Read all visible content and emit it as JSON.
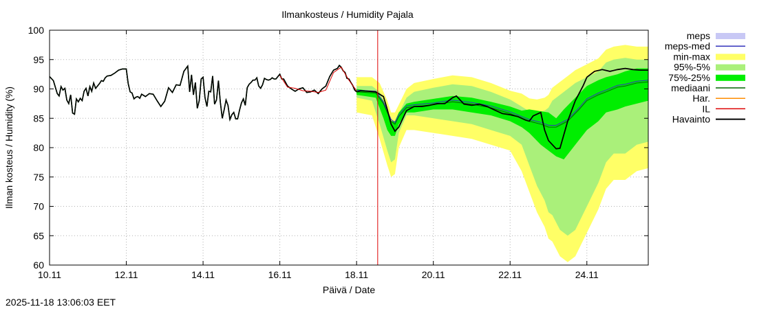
{
  "chart_data": {
    "type": "line",
    "title": "Ilmankosteus / Humidity  Pajala",
    "xlabel": "Päivä / Date",
    "ylabel": "Ilman kosteus / Humidity (%)",
    "timestamp": "2025-11-18 13:06:03 EET",
    "xlim": [
      10,
      25.6
    ],
    "ylim": [
      60,
      100
    ],
    "grid": true,
    "legend_position": "outside-right",
    "forecast_start": 18.55,
    "xticks": [
      {
        "value": 10,
        "label": "10.11"
      },
      {
        "value": 12,
        "label": "12.11"
      },
      {
        "value": 14,
        "label": "14.11"
      },
      {
        "value": 16,
        "label": "16.11"
      },
      {
        "value": 18,
        "label": "18.11"
      },
      {
        "value": 20,
        "label": "20.11"
      },
      {
        "value": 22,
        "label": "22.11"
      },
      {
        "value": 24,
        "label": "24.11"
      }
    ],
    "yticks": [
      60,
      65,
      70,
      75,
      80,
      85,
      90,
      95,
      100
    ],
    "legend": [
      {
        "key": "meps",
        "label": "meps",
        "color": "#c8c8f5",
        "style": "box"
      },
      {
        "key": "meps_med",
        "label": "meps-med",
        "color": "#3333bb",
        "style": "line"
      },
      {
        "key": "minmax",
        "label": "min-max",
        "color": "#ffff66",
        "style": "box"
      },
      {
        "key": "p95_5",
        "label": "95%-5%",
        "color": "#aaf07a",
        "style": "box"
      },
      {
        "key": "p75_25",
        "label": "75%-25%",
        "color": "#00ee00",
        "style": "box"
      },
      {
        "key": "median",
        "label": "mediaani",
        "color": "#006400",
        "style": "line"
      },
      {
        "key": "har",
        "label": "Har.",
        "color": "#ff8c00",
        "style": "line"
      },
      {
        "key": "il",
        "label": "IL",
        "color": "#dd0000",
        "style": "line"
      },
      {
        "key": "obs",
        "label": "Havainto",
        "color": "#000000",
        "style": "line"
      }
    ],
    "series": {
      "havainto_hist": {
        "name": "Havainto",
        "x": [
          10.0,
          10.1,
          10.2,
          10.25,
          10.3,
          10.35,
          10.4,
          10.45,
          10.5,
          10.55,
          10.6,
          10.65,
          10.7,
          10.75,
          10.8,
          10.85,
          10.9,
          10.95,
          11.0,
          11.05,
          11.1,
          11.15,
          11.2,
          11.25,
          11.3,
          11.35,
          11.4,
          11.45,
          11.5,
          11.6,
          11.7,
          11.8,
          11.9,
          12.0,
          12.05,
          12.1,
          12.15,
          12.2,
          12.25,
          12.3,
          12.35,
          12.4,
          12.5,
          12.6,
          12.7,
          12.8,
          12.9,
          13.0,
          13.1,
          13.2,
          13.3,
          13.4,
          13.5,
          13.6,
          13.65,
          13.7,
          13.75,
          13.8,
          13.85,
          13.9,
          13.95,
          14.0,
          14.05,
          14.1,
          14.15,
          14.2,
          14.25,
          14.3,
          14.35,
          14.4,
          14.45,
          14.5,
          14.55,
          14.6,
          14.65,
          14.7,
          14.75,
          14.8,
          14.85,
          14.9,
          14.95,
          15.0,
          15.05,
          15.1,
          15.15,
          15.2,
          15.25,
          15.3,
          15.35,
          15.4,
          15.45,
          15.5,
          15.55,
          15.6,
          15.65,
          15.7,
          15.75,
          15.8,
          15.85,
          15.9,
          15.95,
          16.0,
          16.05,
          16.1,
          16.15,
          16.2,
          16.3,
          16.4,
          16.5,
          16.6,
          16.7,
          16.8,
          16.9,
          17.0,
          17.1,
          17.2,
          17.3,
          17.4,
          17.5,
          17.55,
          17.6,
          17.65,
          17.7,
          17.75,
          17.8,
          17.85,
          17.9,
          17.95,
          18.0
        ],
        "values": [
          92.1,
          91.4,
          89.2,
          88.8,
          90.4,
          89.8,
          90.1,
          88.1,
          87.5,
          89.0,
          85.9,
          85.7,
          88.3,
          87.8,
          88.4,
          88.0,
          89.6,
          90.1,
          88.8,
          90.4,
          89.6,
          91.0,
          90.1,
          90.5,
          90.9,
          91.4,
          91.3,
          91.9,
          92.2,
          92.3,
          92.7,
          93.2,
          93.4,
          93.4,
          90.9,
          89.5,
          89.3,
          88.3,
          88.6,
          88.7,
          88.4,
          89.1,
          88.7,
          89.2,
          89.1,
          88.0,
          87.0,
          87.9,
          90.2,
          89.4,
          90.7,
          90.6,
          93.0,
          93.9,
          89.5,
          92.4,
          89.0,
          91.1,
          86.7,
          88.0,
          91.7,
          92.0,
          88.5,
          87.0,
          89.6,
          89.5,
          92.2,
          87.4,
          88.1,
          91.4,
          87.7,
          85.0,
          86.5,
          88.1,
          87.2,
          84.8,
          85.6,
          86.0,
          84.9,
          84.9,
          86.4,
          87.6,
          88.3,
          87.2,
          90.2,
          90.8,
          91.1,
          91.5,
          91.5,
          91.9,
          90.5,
          90.1,
          90.7,
          91.8,
          91.6,
          91.5,
          91.6,
          91.9,
          91.7,
          91.7,
          92.1,
          92.5,
          91.7,
          91.7,
          91.1,
          90.5,
          90.0,
          89.6,
          90.0,
          90.2,
          89.4,
          89.5,
          89.8,
          89.2,
          90.0,
          90.5,
          92.1,
          93.2,
          93.5,
          94.0,
          93.7,
          93.1,
          92.8,
          91.8,
          91.7,
          91.1,
          90.6,
          89.8,
          89.5
        ]
      },
      "il_hist": {
        "name": "IL",
        "x": [
          16.0,
          16.2,
          16.4,
          16.6,
          16.8,
          17.0,
          17.2,
          17.4,
          17.6,
          17.8,
          18.0
        ],
        "values": [
          92.3,
          90.3,
          90.1,
          89.7,
          89.6,
          89.4,
          89.8,
          92.8,
          93.7,
          91.5,
          89.7
        ]
      },
      "p95_5": {
        "x": [
          18.0,
          18.4,
          18.6,
          18.8,
          18.9,
          19.0,
          19.1,
          19.3,
          19.5,
          20.0,
          20.5,
          21.0,
          21.5,
          22.0,
          22.3,
          22.5,
          22.7,
          22.9,
          23.0,
          23.1,
          23.3,
          23.5,
          23.7,
          24.0,
          24.3,
          24.5,
          24.7,
          25.0,
          25.3,
          25.6
        ],
        "upper": [
          90.5,
          90.5,
          89.5,
          86.5,
          84.5,
          84.5,
          85.8,
          88.5,
          89.5,
          90.2,
          90.8,
          90.5,
          89.5,
          88.2,
          87.0,
          86.2,
          86.0,
          86.3,
          86.8,
          88.0,
          89.0,
          90.0,
          91.0,
          92.0,
          93.0,
          94.5,
          95.0,
          95.3,
          95.0,
          95.0
        ],
        "lower": [
          88.5,
          88.0,
          84.0,
          79.5,
          77.5,
          78.0,
          82.5,
          85.5,
          85.5,
          85.0,
          84.5,
          84.0,
          83.0,
          82.0,
          80.5,
          77.0,
          73.5,
          71.0,
          69.0,
          68.5,
          66.0,
          65.0,
          66.0,
          70.0,
          74.0,
          77.5,
          79.0,
          79.0,
          80.5,
          81.0
        ]
      },
      "p75_25": {
        "x": [
          18.0,
          18.5,
          18.7,
          18.8,
          18.9,
          19.0,
          19.1,
          19.3,
          19.5,
          20.0,
          20.5,
          21.0,
          21.5,
          22.0,
          22.3,
          22.5,
          22.8,
          23.0,
          23.2,
          23.4,
          23.7,
          24.0,
          24.3,
          24.5,
          24.8,
          25.0,
          25.3,
          25.6
        ],
        "upper": [
          90.0,
          89.5,
          88.0,
          86.0,
          84.5,
          84.5,
          86.0,
          87.5,
          87.8,
          88.3,
          88.8,
          88.5,
          87.8,
          87.0,
          86.3,
          86.5,
          86.2,
          86.0,
          85.0,
          86.5,
          88.5,
          90.5,
          91.5,
          92.0,
          92.5,
          93.0,
          93.5,
          93.5
        ],
        "lower": [
          89.0,
          88.5,
          85.0,
          83.0,
          82.0,
          82.0,
          84.0,
          86.0,
          86.0,
          86.5,
          86.5,
          86.0,
          85.5,
          84.5,
          83.5,
          82.5,
          80.5,
          79.5,
          78.5,
          78.0,
          80.5,
          83.0,
          84.5,
          86.0,
          86.5,
          87.0,
          87.5,
          88.0
        ]
      },
      "mediaani": {
        "x": [
          18.0,
          18.5,
          18.7,
          18.9,
          19.0,
          19.1,
          19.3,
          19.5,
          20.0,
          20.5,
          21.0,
          21.5,
          22.0,
          22.3,
          22.5,
          22.8,
          23.0,
          23.2,
          23.5,
          23.8,
          24.0,
          24.3,
          24.5,
          24.8,
          25.0,
          25.3,
          25.6
        ],
        "values": [
          89.5,
          89.3,
          87.5,
          84.5,
          84.0,
          85.3,
          86.8,
          87.0,
          87.3,
          87.8,
          87.4,
          86.8,
          85.8,
          85.0,
          84.5,
          84.0,
          83.5,
          83.5,
          84.5,
          86.5,
          88.0,
          89.0,
          89.5,
          90.3,
          90.5,
          91.0,
          91.2
        ]
      },
      "havainto_fc": {
        "name": "Havainto",
        "x": [
          18.0,
          18.1,
          18.3,
          18.5,
          18.7,
          18.8,
          18.9,
          19.0,
          19.1,
          19.3,
          19.5,
          19.7,
          19.9,
          20.1,
          20.3,
          20.5,
          20.6,
          20.8,
          21.0,
          21.2,
          21.4,
          21.6,
          21.8,
          22.0,
          22.2,
          22.4,
          22.5,
          22.6,
          22.8,
          22.9,
          23.0,
          23.2,
          23.3,
          23.5,
          23.7,
          23.9,
          24.0,
          24.2,
          24.4,
          24.6,
          24.8,
          25.0,
          25.2,
          25.4,
          25.6
        ],
        "values": [
          89.5,
          89.7,
          89.6,
          89.5,
          88.7,
          86.5,
          84.0,
          82.8,
          83.5,
          86.3,
          87.0,
          87.0,
          87.2,
          87.5,
          87.5,
          88.5,
          88.8,
          87.4,
          87.2,
          87.4,
          87.0,
          86.4,
          85.8,
          85.6,
          85.3,
          84.7,
          84.5,
          85.4,
          86.0,
          83.0,
          81.2,
          79.8,
          79.9,
          84.5,
          88.0,
          90.5,
          92.0,
          93.0,
          93.3,
          93.0,
          93.3,
          93.5,
          93.3,
          93.2,
          93.2
        ]
      }
    }
  }
}
